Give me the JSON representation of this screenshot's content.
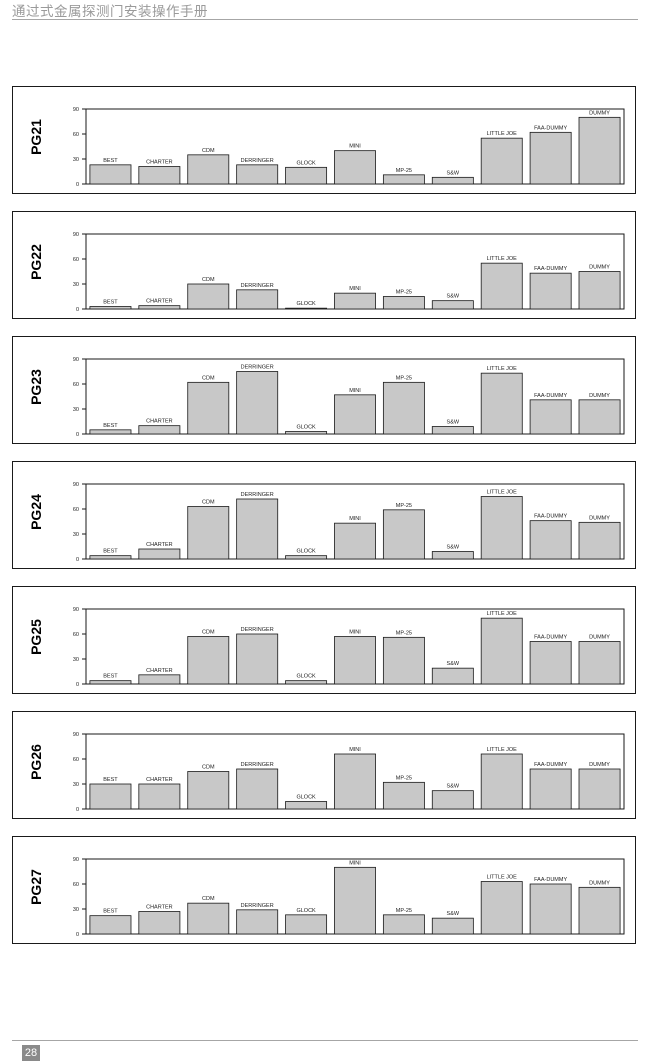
{
  "header": {
    "title": "通过式金属探测门安装操作手册"
  },
  "footer": {
    "page_number": "28"
  },
  "chart_data": [
    {
      "type": "bar",
      "title": "PG21",
      "ylim": [
        0,
        90
      ],
      "yticks": [
        0,
        30,
        60,
        90
      ],
      "categories": [
        "BEST",
        "CHARTER",
        "CDM",
        "DERRINGER",
        "GLOCK",
        "MINI",
        "MP-25",
        "S&W",
        "LITTLE JOE",
        "FAA-DUMMY",
        "DUMMY"
      ],
      "values": [
        23,
        21,
        35,
        23,
        20,
        40,
        11,
        8,
        55,
        62,
        80
      ]
    },
    {
      "type": "bar",
      "title": "PG22",
      "ylim": [
        0,
        90
      ],
      "yticks": [
        0,
        30,
        60,
        90
      ],
      "categories": [
        "BEST",
        "CHARTER",
        "CDM",
        "DERRINGER",
        "GLOCK",
        "MINI",
        "MP-25",
        "S&W",
        "LITTLE JOE",
        "FAA-DUMMY",
        "DUMMY"
      ],
      "values": [
        3,
        4,
        30,
        23,
        1,
        19,
        15,
        10,
        55,
        43,
        45
      ]
    },
    {
      "type": "bar",
      "title": "PG23",
      "ylim": [
        0,
        90
      ],
      "yticks": [
        0,
        30,
        60,
        90
      ],
      "categories": [
        "BEST",
        "CHARTER",
        "CDM",
        "DERRINGER",
        "GLOCK",
        "MINI",
        "MP-25",
        "S&W",
        "LITTLE JOE",
        "FAA-DUMMY",
        "DUMMY"
      ],
      "values": [
        5,
        10,
        62,
        75,
        3,
        47,
        62,
        9,
        73,
        41,
        41
      ]
    },
    {
      "type": "bar",
      "title": "PG24",
      "ylim": [
        0,
        90
      ],
      "yticks": [
        0,
        30,
        60,
        90
      ],
      "categories": [
        "BEST",
        "CHARTER",
        "CDM",
        "DERRINGER",
        "GLOCK",
        "MINI",
        "MP-25",
        "S&W",
        "LITTLE JOE",
        "FAA-DUMMY",
        "DUMMY"
      ],
      "values": [
        4,
        12,
        63,
        72,
        4,
        43,
        59,
        9,
        75,
        46,
        44
      ]
    },
    {
      "type": "bar",
      "title": "PG25",
      "ylim": [
        0,
        90
      ],
      "yticks": [
        0,
        30,
        60,
        90
      ],
      "categories": [
        "BEST",
        "CHARTER",
        "CDM",
        "DERRINGER",
        "GLOCK",
        "MINI",
        "MP-25",
        "S&W",
        "LITTLE JOE",
        "FAA-DUMMY",
        "DUMMY"
      ],
      "values": [
        4,
        11,
        57,
        60,
        4,
        57,
        56,
        19,
        79,
        51,
        51
      ]
    },
    {
      "type": "bar",
      "title": "PG26",
      "ylim": [
        0,
        90
      ],
      "yticks": [
        0,
        30,
        60,
        90
      ],
      "categories": [
        "BEST",
        "CHARTER",
        "CDM",
        "DERRINGER",
        "GLOCK",
        "MINI",
        "MP-25",
        "S&W",
        "LITTLE JOE",
        "FAA-DUMMY",
        "DUMMY"
      ],
      "values": [
        30,
        30,
        45,
        48,
        9,
        66,
        32,
        22,
        66,
        48,
        48
      ]
    },
    {
      "type": "bar",
      "title": "PG27",
      "ylim": [
        0,
        90
      ],
      "yticks": [
        0,
        30,
        60,
        90
      ],
      "categories": [
        "BEST",
        "CHARTER",
        "CDM",
        "DERRINGER",
        "GLOCK",
        "MINI",
        "MP-25",
        "S&W",
        "LITTLE JOE",
        "FAA-DUMMY",
        "DUMMY"
      ],
      "values": [
        22,
        27,
        37,
        29,
        23,
        80,
        23,
        19,
        63,
        60,
        56
      ]
    }
  ]
}
